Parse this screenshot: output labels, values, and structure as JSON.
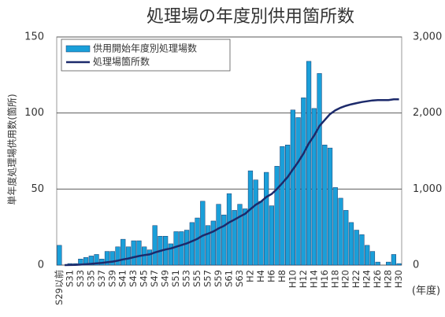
{
  "chart_data": {
    "type": "bar-line",
    "title": "処理場の年度別供用箇所数",
    "y_label": "単年度処理場供用数(箇所)",
    "x_label": "(年度)",
    "categories": [
      "S29以前",
      null,
      "S31",
      null,
      "S33",
      null,
      "S35",
      null,
      "S37",
      null,
      "S39",
      null,
      "S41",
      null,
      "S43",
      null,
      "S45",
      null,
      "S47",
      null,
      "S49",
      null,
      "S51",
      null,
      "S53",
      null,
      "S55",
      null,
      "S57",
      null,
      "S59",
      null,
      "S61",
      null,
      "S63",
      null,
      "H2",
      null,
      "H4",
      null,
      "H6",
      null,
      "H8",
      null,
      "H10",
      null,
      "H12",
      null,
      "H14",
      null,
      "H16",
      null,
      "H18",
      null,
      "H20",
      null,
      "H22",
      null,
      "H24",
      null,
      "H26",
      null,
      "H28",
      null,
      "H30"
    ],
    "series": [
      {
        "name": "供用開始年度別処理場数",
        "color": "#1a9fd9",
        "values": [
          13,
          0,
          1,
          1,
          4,
          5,
          6,
          7,
          4,
          9,
          9,
          12,
          17,
          12,
          16,
          16,
          12,
          10,
          26,
          19,
          19,
          14,
          22,
          22,
          23,
          28,
          31,
          42,
          26,
          29,
          40,
          33,
          47,
          36,
          40,
          37,
          62,
          56,
          42,
          61,
          39,
          65,
          78,
          79,
          102,
          97,
          110,
          134,
          103,
          126,
          79,
          77,
          51,
          44,
          36,
          28,
          23,
          20,
          13,
          9,
          2,
          0,
          2,
          7,
          1
        ]
      },
      {
        "name": "処理場箇所数",
        "color": "#1c2a6b",
        "axis": "y2",
        "values": [
          null,
          0,
          1,
          2,
          6,
          11,
          17,
          24,
          28,
          37,
          46,
          58,
          75,
          87,
          103,
          119,
          131,
          141,
          167,
          186,
          205,
          219,
          241,
          263,
          286,
          314,
          345,
          387,
          413,
          442,
          482,
          515,
          562,
          598,
          638,
          675,
          737,
          793,
          835,
          896,
          935,
          1000,
          1078,
          1157,
          1259,
          1356,
          1466,
          1600,
          1703,
          1829,
          1908,
          1985,
          2036,
          2070,
          2095,
          2115,
          2130,
          2145,
          2155,
          2165,
          2170,
          2170,
          2170,
          2180,
          2180
        ]
      }
    ],
    "ylim": [
      0,
      150
    ],
    "yticks": [
      0,
      50,
      100,
      150
    ],
    "y2lim": [
      0,
      3000
    ],
    "y2ticks": [
      0,
      {
        "value": 1000,
        "label": "1,000"
      },
      {
        "value": 2000,
        "label": "2,000"
      },
      {
        "value": 3000,
        "label": "3,000"
      }
    ],
    "grid": true,
    "legend": "upper-left"
  }
}
